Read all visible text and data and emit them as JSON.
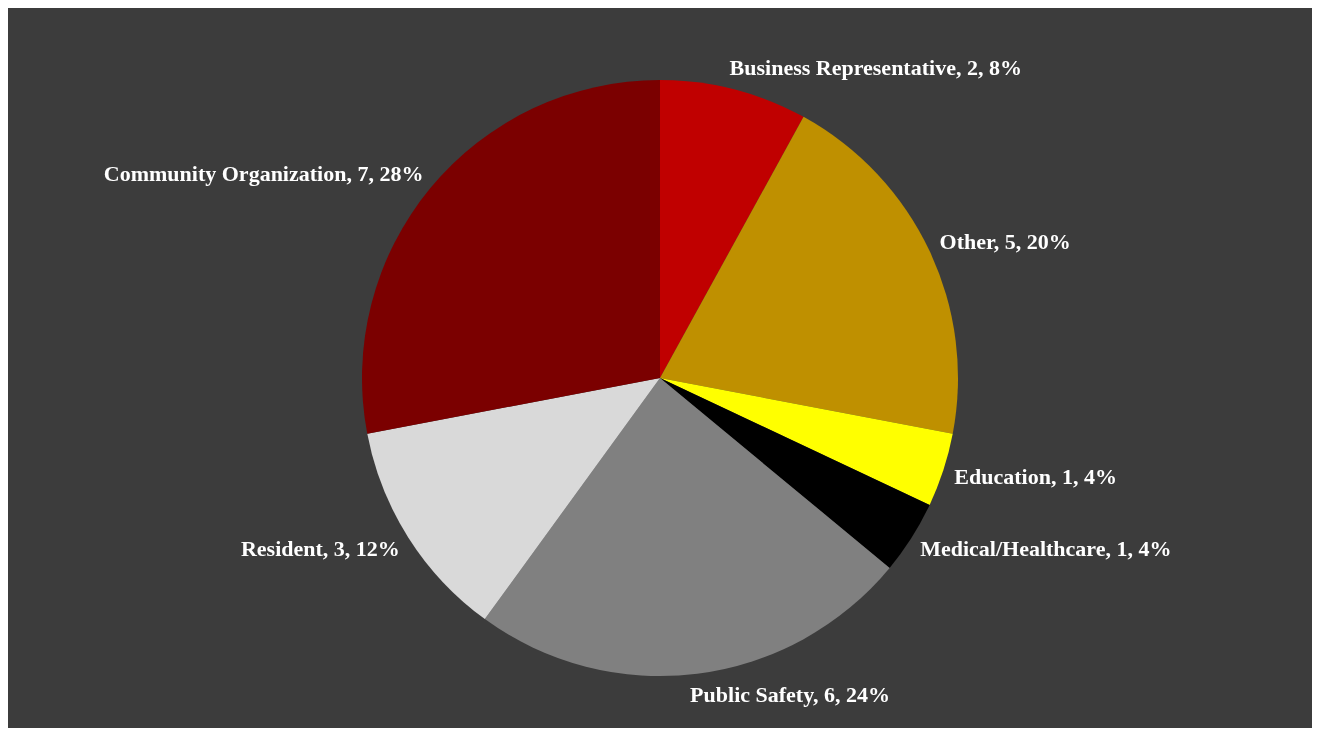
{
  "chart_data": {
    "type": "pie",
    "categories": [
      "Business Representative",
      "Other",
      "Education",
      "Medical/Healthcare",
      "Public Safety",
      "Resident",
      "Community Organization"
    ],
    "values": [
      2,
      5,
      1,
      1,
      6,
      3,
      7
    ],
    "value_labels": [
      "2, 8%",
      "5, 20%",
      "1, 4%",
      "1, 4%",
      "6, 24%",
      "3, 12%",
      "7, 28%"
    ],
    "colors": [
      "#c00000",
      "#bf9000",
      "#ffff00",
      "#000000",
      "#808080",
      "#d9d9d9",
      "#7b0000"
    ],
    "legend": false
  }
}
